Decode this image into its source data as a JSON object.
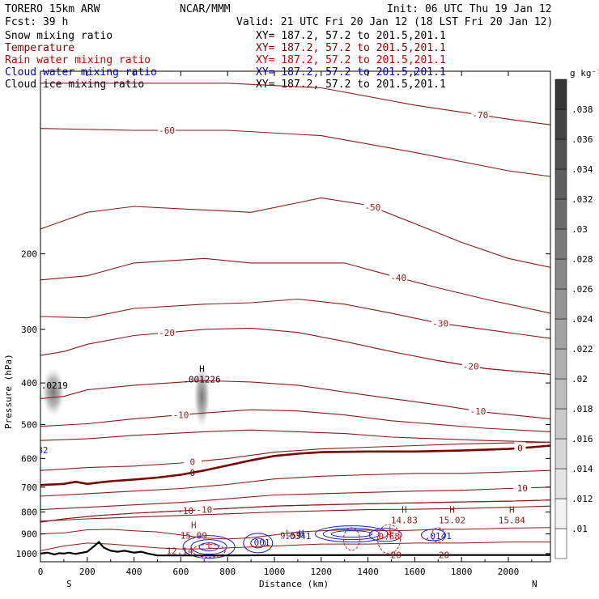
{
  "header": {
    "model_line": "TORERO  15km ARW",
    "center": "NCAR/MMM",
    "init": "Init: 06 UTC Thu 19 Jan 12",
    "fcst": "Fcst:   39 h",
    "valid": "Valid: 21 UTC Fri 20 Jan 12 (18 LST Fri 20 Jan 12)"
  },
  "fields": [
    {
      "name": "Snow mixing ratio",
      "xy": "XY= 187.2, 57.2 to 201.5,201.1",
      "color": "#000000"
    },
    {
      "name": "Temperature",
      "xy": "XY= 187.2, 57.2 to 201.5,201.1",
      "color": "#8b0000"
    },
    {
      "name": "Rain water mixing ratio",
      "xy": "XY= 187.2, 57.2 to 201.5,201.1",
      "color": "#cc0000"
    },
    {
      "name": "Cloud water mixing ratio",
      "xy": "XY= 187.2, 57.2 to 201.5,201.1",
      "color": "#0000cc"
    },
    {
      "name": "Cloud ice mixing ratio",
      "xy": "XY= 187.2, 57.2 to 201.5,201.1",
      "color": "#000000"
    }
  ],
  "colors": {
    "temperature": "#8b1a1a",
    "zero_isotherm": "#7a0000",
    "rain": "#dd1111",
    "cloud_water": "#1a1acc",
    "terrain": "#000000",
    "snow": "#555555"
  },
  "chart_data": {
    "type": "cross-section",
    "xlabel": "Distance (km)",
    "ylabel": "Pressure (hPa)",
    "xlim": [
      0,
      2180
    ],
    "ylim": [
      1045,
      75
    ],
    "x_ticks": [
      0,
      200,
      400,
      600,
      800,
      1000,
      1200,
      1400,
      1600,
      1800,
      2000
    ],
    "y_ticks": [
      200,
      300,
      400,
      500,
      600,
      700,
      800,
      900,
      1000
    ],
    "endpoints": {
      "left": "S",
      "right": "N"
    },
    "colorbar": {
      "units": "g kg⁻¹",
      "levels": [
        ".01",
        ".012",
        ".014",
        ".016",
        ".018",
        ".02",
        ".022",
        ".024",
        ".026",
        ".028",
        ".03",
        ".032",
        ".034",
        ".036",
        ".038"
      ]
    },
    "temperature_isotherms": [
      {
        "label": "-70",
        "x": [
          0,
          400,
          800,
          1200,
          1600,
          2000,
          2180
        ],
        "p": [
          80,
          80,
          80,
          82,
          90,
          97,
          100
        ],
        "label_x": 1880
      },
      {
        "label": "-60",
        "x": [
          0,
          400,
          800,
          1200,
          1600,
          2000,
          2180
        ],
        "p": [
          102,
          103,
          103,
          106,
          116,
          128,
          132
        ],
        "label_x": 540
      },
      {
        "label": "-50",
        "x": [
          0,
          200,
          400,
          700,
          900,
          1100,
          1200,
          1400,
          1600,
          1800,
          2000,
          2180
        ],
        "p": [
          175,
          160,
          155,
          158,
          160,
          152,
          148,
          154,
          170,
          188,
          205,
          215
        ],
        "label_x": 1420
      },
      {
        "label": "-40",
        "x": [
          0,
          200,
          400,
          700,
          900,
          1100,
          1300,
          1500,
          1700,
          1900,
          2180
        ],
        "p": [
          230,
          225,
          210,
          205,
          210,
          210,
          210,
          225,
          240,
          255,
          275
        ],
        "label_x": 1530
      },
      {
        "label": "-30",
        "x": [
          0,
          200,
          400,
          700,
          900,
          1100,
          1300,
          1500,
          1700,
          1900,
          2180
        ],
        "p": [
          280,
          282,
          268,
          262,
          260,
          255,
          262,
          275,
          290,
          300,
          315
        ],
        "label_x": 1710
      },
      {
        "label": "-20",
        "x": [
          0,
          100,
          200,
          400,
          700,
          900,
          1100,
          1300,
          1500,
          1700,
          1900,
          2180
        ],
        "p": [
          345,
          338,
          325,
          310,
          300,
          298,
          305,
          320,
          338,
          355,
          370,
          382
        ],
        "label_x": 540
      },
      {
        "label": "-20",
        "x": [
          1700,
          1900,
          2180
        ],
        "p": [
          355,
          370,
          382
        ],
        "label_x": 1840
      },
      {
        "label": "-10",
        "x": [
          0,
          100,
          200,
          400,
          700,
          900,
          1100,
          1300,
          1500,
          1700,
          1900,
          2180
        ],
        "p": [
          435,
          430,
          415,
          405,
          395,
          398,
          405,
          420,
          435,
          450,
          468,
          485
        ],
        "label_x": 1870
      },
      {
        "label": "-10",
        "x": [
          0,
          200,
          400,
          700,
          900,
          1100,
          1300,
          1500,
          1700,
          1900,
          2180
        ],
        "p": [
          505,
          498,
          485,
          470,
          462,
          465,
          475,
          490,
          500,
          510,
          520
        ],
        "label_x": 600
      },
      {
        "label": "",
        "x": [
          0,
          200,
          400,
          700,
          900,
          1100,
          1300,
          1500,
          1700,
          1900,
          2180
        ],
        "p": [
          545,
          540,
          530,
          520,
          515,
          520,
          525,
          535,
          540,
          545,
          550
        ],
        "label_x": 0
      },
      {
        "label": "0",
        "x": [
          0,
          100,
          200,
          400,
          600,
          800,
          1000,
          1200,
          1400,
          1600,
          1800,
          2000,
          2180
        ],
        "p": [
          640,
          635,
          630,
          625,
          615,
          600,
          580,
          570,
          565,
          560,
          555,
          552,
          550
        ],
        "label_x": 650
      },
      {
        "label": "",
        "x": [
          0,
          200,
          400,
          600,
          800,
          1000,
          1200,
          1400,
          1600,
          1800,
          2000,
          2180
        ],
        "p": [
          735,
          725,
          715,
          705,
          690,
          670,
          660,
          655,
          650,
          650,
          645,
          640
        ],
        "label_x": 0
      },
      {
        "label": "10",
        "x": [
          0,
          200,
          400,
          600,
          800,
          1000,
          1200,
          1400,
          1600,
          1800,
          2000,
          2180
        ],
        "p": [
          790,
          780,
          770,
          760,
          745,
          730,
          725,
          720,
          715,
          712,
          705,
          700
        ],
        "label_x": 2060
      },
      {
        "label": "",
        "x": [
          0,
          200,
          400,
          600,
          800,
          1000,
          1200,
          1400,
          1600,
          1800,
          2000,
          2180
        ],
        "p": [
          840,
          830,
          822,
          815,
          808,
          800,
          795,
          790,
          788,
          785,
          780,
          775
        ],
        "label_x": 0
      },
      {
        "label": "-10",
        "x": [
          0,
          100,
          250,
          400,
          600,
          800,
          1000,
          1200,
          1400,
          1600,
          1800,
          2000,
          2180
        ],
        "p": [
          845,
          830,
          815,
          805,
          795,
          785,
          775,
          770,
          765,
          762,
          758,
          755,
          750
        ],
        "label_x": 620
      },
      {
        "label": "-10",
        "x": [
          0,
          100,
          250,
          400,
          600,
          800,
          1000,
          1200,
          1400,
          1600,
          1800,
          2000,
          2180
        ],
        "p": [
          845,
          830,
          815,
          805,
          795,
          785,
          775,
          770,
          765,
          762,
          758,
          755,
          750
        ],
        "label_x": 700
      }
    ],
    "zero_isotherm": {
      "label": "0",
      "x": [
        0,
        100,
        150,
        200,
        300,
        400,
        500,
        600,
        700,
        800,
        900,
        1000,
        1100,
        1200,
        1400,
        1600,
        1800,
        2000,
        2100,
        2180
      ],
      "p": [
        692,
        688,
        680,
        688,
        678,
        672,
        665,
        655,
        640,
        623,
        606,
        592,
        585,
        580,
        578,
        578,
        575,
        570,
        565,
        560
      ],
      "label_x": 2050
    },
    "pbl_contours": [
      {
        "x": [
          0,
          100,
          200,
          300,
          400,
          500,
          600,
          700,
          800,
          900,
          1000,
          1100,
          1200,
          1300,
          1400,
          1500,
          1600,
          1700,
          1800,
          1900,
          2000,
          2180
        ],
        "p": [
          900,
          895,
          880,
          878,
          885,
          890,
          905,
          920,
          925,
          918,
          905,
          890,
          885,
          880,
          882,
          885,
          882,
          878,
          878,
          875,
          872,
          870
        ]
      },
      {
        "x": [
          0,
          100,
          200,
          300,
          400,
          500,
          600,
          700,
          800,
          900,
          1000,
          1100,
          1200,
          1400,
          1600,
          1800,
          2000,
          2180
        ],
        "p": [
          985,
          960,
          945,
          950,
          960,
          970,
          975,
          975,
          970,
          965,
          960,
          955,
          950,
          950,
          945,
          945,
          940,
          940
        ]
      }
    ],
    "extrema": [
      {
        "kind": "H",
        "value": "15.09",
        "x": 655,
        "p": 903
      },
      {
        "kind": "H",
        "value": "14.83",
        "x": 1555,
        "p": 832
      },
      {
        "kind": "H",
        "value": "15.02",
        "x": 1760,
        "p": 832
      },
      {
        "kind": "H",
        "value": "15.84",
        "x": 2015,
        "p": 832
      },
      {
        "kind": "H",
        "value": ".001226",
        "x": 690,
        "p": 390
      }
    ],
    "surface_labels": [
      {
        "text": "20",
        "x": 1520,
        "p": 1008
      },
      {
        "text": "20",
        "x": 1725,
        "p": 1008
      },
      {
        "text": "12.14",
        "x": 595,
        "p": 985
      },
      {
        "text": "9.59",
        "x": 1070,
        "p": 908
      },
      {
        "text": "L",
        "x": 1060,
        "p": 895
      }
    ],
    "cloud_water": [
      {
        "text": ".001",
        "x": 935,
        "p": 942
      },
      {
        "text": ".0141",
        "x": 1700,
        "p": 910
      },
      {
        "text": "H",
        "x": 1115,
        "p": 895
      },
      {
        "text": ".0341",
        "x": 1100,
        "p": 910
      },
      {
        "text": "82",
        "x": 10,
        "p": 574
      }
    ],
    "rain_labels": [
      {
        "text": "L",
        "x": 725,
        "p": 955
      },
      {
        "text": "H",
        "x": 1490,
        "p": 903
      },
      {
        "text": "0.68",
        "x": 1490,
        "p": 912
      },
      {
        "text": "L",
        "x": 1500,
        "p": 880
      }
    ],
    "snow_labels": [
      {
        "text": ".0219",
        "x": 60,
        "p": 405
      }
    ]
  }
}
